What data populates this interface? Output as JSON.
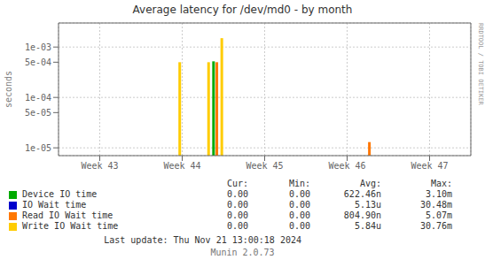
{
  "chart_data": {
    "type": "bar",
    "title": "Average latency for /dev/md0 - by month",
    "y_label": "seconds",
    "log": "y",
    "grid": true,
    "xlim": [
      42.5,
      47.5
    ],
    "xticks": [
      {
        "value": 43,
        "label": "Week 43"
      },
      {
        "value": 44,
        "label": "Week 44"
      },
      {
        "value": 45,
        "label": "Week 45"
      },
      {
        "value": 46,
        "label": "Week 46"
      },
      {
        "value": 47,
        "label": "Week 47"
      }
    ],
    "ylim": [
      7e-06,
      0.003
    ],
    "yticks": [
      {
        "value": 1e-05,
        "label": "1e-05"
      },
      {
        "value": 5e-05,
        "label": "5e-05"
      },
      {
        "value": 0.0001,
        "label": "1e-04"
      },
      {
        "value": 0.0005,
        "label": "5e-04"
      },
      {
        "value": 0.001,
        "label": "1e-03"
      }
    ],
    "series": [
      {
        "name": "Device IO time",
        "color": "#00aa00",
        "x": [
          44.38
        ],
        "values": [
          0.00052
        ]
      },
      {
        "name": "IO Wait time",
        "color": "#0000cc",
        "x": [],
        "values": []
      },
      {
        "name": "Read IO Wait time",
        "color": "#ff7700",
        "x": [
          44.42,
          46.27
        ],
        "values": [
          0.0005,
          1.3e-05
        ]
      },
      {
        "name": "Write IO Wait time",
        "color": "#ffcc00",
        "x": [
          43.97,
          44.32,
          44.48
        ],
        "values": [
          0.0005,
          0.0005,
          0.0015
        ]
      }
    ],
    "table": {
      "headers": [
        "Cur:",
        "Min:",
        "Avg:",
        "Max:"
      ],
      "rows": [
        [
          "0.00",
          "0.00",
          "622.46n",
          "3.10m"
        ],
        [
          "0.00",
          "0.00",
          "5.13u",
          "30.48m"
        ],
        [
          "0.00",
          "0.00",
          "804.90n",
          "5.07m"
        ],
        [
          "0.00",
          "0.00",
          "5.84u",
          "30.76m"
        ]
      ]
    },
    "annotations": [
      "Last update: Thu Nov 21 13:00:18 2024",
      "Munin 2.0.73",
      "RRDTOOL / TOBI OETIKER"
    ]
  }
}
